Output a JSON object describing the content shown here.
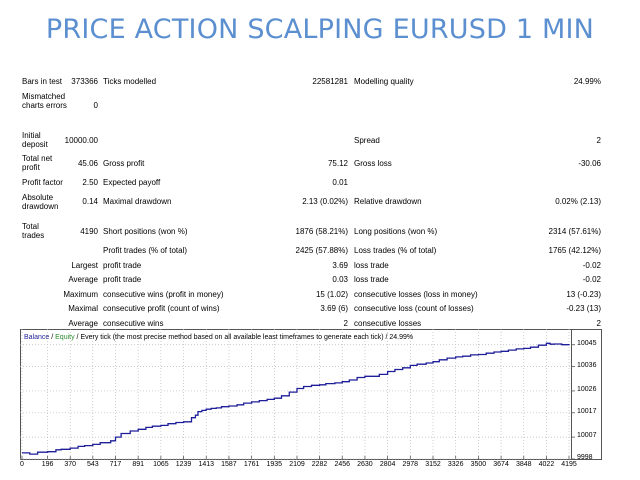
{
  "title": "PRICE ACTION SCALPING EURUSD 1 MIN",
  "report": {
    "bars_label": "Bars in test",
    "bars_value": "373366",
    "ticks_label": "Ticks modelled",
    "ticks_value": "22581281",
    "quality_label": "Modelling quality",
    "quality_value": "24.99%",
    "mismatched_label": "Mismatched charts errors",
    "mismatched_value": "0",
    "initial_deposit_label": "Initial deposit",
    "initial_deposit_value": "10000.00",
    "spread_label": "Spread",
    "spread_value": "2",
    "total_net_profit_label": "Total net profit",
    "total_net_profit_value": "45.06",
    "gross_profit_label": "Gross profit",
    "gross_profit_value": "75.12",
    "gross_loss_label": "Gross loss",
    "gross_loss_value": "-30.06",
    "profit_factor_label": "Profit factor",
    "profit_factor_value": "2.50",
    "expected_payoff_label": "Expected payoff",
    "expected_payoff_value": "0.01",
    "absolute_drawdown_label": "Absolute drawdown",
    "absolute_drawdown_value": "0.14",
    "maximal_drawdown_label": "Maximal drawdown",
    "maximal_drawdown_value": "2.13 (0.02%)",
    "relative_drawdown_label": "Relative drawdown",
    "relative_drawdown_value": "0.02% (2.13)",
    "total_trades_label": "Total trades",
    "total_trades_value": "4190",
    "short_positions_label": "Short positions (won %)",
    "short_positions_value": "1876 (58.21%)",
    "long_positions_label": "Long positions (won %)",
    "long_positions_value": "2314 (57.61%)",
    "profit_trades_label": "Profit trades (% of total)",
    "profit_trades_value": "2425 (57.88%)",
    "loss_trades_label": "Loss trades (% of total)",
    "loss_trades_value": "1765 (42.12%)",
    "largest_label": "Largest",
    "largest_profit_label": "profit trade",
    "largest_profit_value": "3.69",
    "largest_loss_label": "loss trade",
    "largest_loss_value": "-0.02",
    "average_label": "Average",
    "average_profit_label": "profit trade",
    "average_profit_value": "0.03",
    "average_loss_label": "loss trade",
    "average_loss_value": "-0.02",
    "maximum_label": "Maximum",
    "max_cons_wins_label": "consecutive wins (profit in money)",
    "max_cons_wins_value": "15 (1.02)",
    "max_cons_losses_label": "consecutive losses (loss in money)",
    "max_cons_losses_value": "13 (-0.23)",
    "maximal_label": "Maximal",
    "maximal_cons_profit_label": "consecutive profit (count of wins)",
    "maximal_cons_profit_value": "3.69 (6)",
    "maximal_cons_loss_label": "consecutive loss (count of losses)",
    "maximal_cons_loss_value": "-0.23 (13)",
    "average2_label": "Average",
    "avg_cons_wins_label": "consecutive wins",
    "avg_cons_wins_value": "2",
    "avg_cons_losses_label": "consecutive losses",
    "avg_cons_losses_value": "2"
  },
  "chart_header": {
    "balance": "Balance",
    "separator": " / ",
    "equity": "Equity",
    "rest": " / Every tick (the most precise method based on all available least timeframes to generate each tick) / 24.99%"
  },
  "chart_data": {
    "type": "line",
    "x_ticks": [
      "0",
      "196",
      "370",
      "543",
      "717",
      "891",
      "1065",
      "1239",
      "1413",
      "1587",
      "1761",
      "1935",
      "2109",
      "2282",
      "2456",
      "2630",
      "2804",
      "2978",
      "3152",
      "3326",
      "3500",
      "3674",
      "3848",
      "4022",
      "4195"
    ],
    "y_ticks": [
      "10045",
      "10036",
      "10026",
      "10017",
      "10007",
      "9998"
    ],
    "xlim": [
      0,
      4195
    ],
    "ylim": [
      9998,
      10049
    ],
    "grid": true,
    "series": [
      {
        "name": "Balance",
        "color": "#1e1e9a",
        "x": [
          0,
          60,
          120,
          196,
          260,
          300,
          370,
          430,
          480,
          543,
          600,
          680,
          717,
          760,
          830,
          891,
          950,
          1000,
          1065,
          1120,
          1180,
          1239,
          1300,
          1330,
          1350,
          1380,
          1413,
          1450,
          1490,
          1530,
          1587,
          1650,
          1700,
          1761,
          1820,
          1880,
          1935,
          1990,
          2050,
          2109,
          2160,
          2220,
          2282,
          2330,
          2400,
          2456,
          2510,
          2570,
          2630,
          2690,
          2740,
          2804,
          2860,
          2920,
          2978,
          3030,
          3100,
          3152,
          3200,
          3260,
          3326,
          3380,
          3440,
          3500,
          3560,
          3620,
          3674,
          3730,
          3790,
          3848,
          3900,
          3960,
          4022,
          4050,
          4080,
          4140,
          4195
        ],
        "y": [
          10000.5,
          10000.0,
          10000.8,
          10001.0,
          10001.8,
          10002.0,
          10002.5,
          10003.2,
          10003.5,
          10004.0,
          10004.7,
          10005.5,
          10007.0,
          10008.5,
          10009.5,
          10010.2,
          10011.0,
          10011.5,
          10011.8,
          10012.5,
          10013.0,
          10013.3,
          10015.0,
          10016.0,
          10017.5,
          10018.0,
          10018.5,
          10018.8,
          10019.0,
          10019.5,
          10019.8,
          10020.3,
          10021.0,
          10021.5,
          10022.0,
          10022.5,
          10023.0,
          10024.0,
          10025.5,
          10027.0,
          10027.8,
          10028.3,
          10028.5,
          10029.0,
          10029.3,
          10029.8,
          10030.5,
          10031.5,
          10032.0,
          10032.0,
          10032.8,
          10034.0,
          10034.8,
          10035.5,
          10036.5,
          10037.0,
          10037.5,
          10038.0,
          10038.8,
          10039.5,
          10040.0,
          10040.3,
          10040.8,
          10041.0,
          10041.5,
          10042.0,
          10042.3,
          10042.8,
          10043.3,
          10043.5,
          10044.0,
          10044.8,
          10045.6,
          10045.2,
          10045.3,
          10045.0,
          10044.8
        ]
      }
    ]
  }
}
